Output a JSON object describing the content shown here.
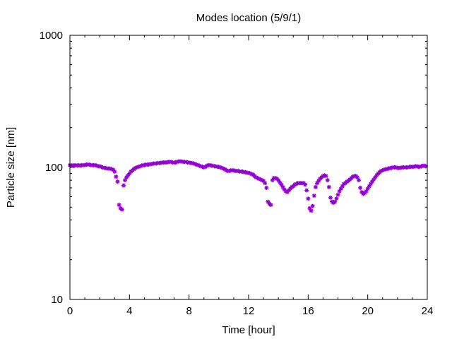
{
  "chart_data": {
    "type": "scatter",
    "title": "Modes location (5/9/1)",
    "xlabel": "Time [hour]",
    "ylabel": "Particle size [nm]",
    "xlim": [
      0,
      24
    ],
    "ylim": [
      10,
      1000
    ],
    "yscale": "log",
    "x_ticks": [
      0,
      4,
      8,
      12,
      16,
      20,
      24
    ],
    "x_tick_labels": [
      "0",
      "4",
      "8",
      "12",
      "16",
      "20",
      "24"
    ],
    "y_ticks": [
      10,
      100,
      1000
    ],
    "y_tick_labels": [
      "10",
      "100",
      "1000"
    ],
    "grid": false,
    "marker_color": "#9400d3",
    "series": [
      {
        "points": [
          [
            0.0,
            104
          ],
          [
            0.1,
            103
          ],
          [
            0.2,
            104
          ],
          [
            0.3,
            103
          ],
          [
            0.4,
            104
          ],
          [
            0.5,
            103
          ],
          [
            0.6,
            104
          ],
          [
            0.7,
            103
          ],
          [
            0.8,
            104
          ],
          [
            0.9,
            104
          ],
          [
            1.0,
            104
          ],
          [
            1.1,
            105
          ],
          [
            1.2,
            105
          ],
          [
            1.3,
            105
          ],
          [
            1.4,
            104
          ],
          [
            1.5,
            104
          ],
          [
            1.6,
            104
          ],
          [
            1.7,
            104
          ],
          [
            1.8,
            103
          ],
          [
            1.9,
            102
          ],
          [
            2.0,
            102
          ],
          [
            2.1,
            101
          ],
          [
            2.2,
            100
          ],
          [
            2.3,
            99
          ],
          [
            2.4,
            99
          ],
          [
            2.5,
            98
          ],
          [
            2.6,
            98
          ],
          [
            2.7,
            98
          ],
          [
            2.8,
            97
          ],
          [
            2.9,
            96
          ],
          [
            3.0,
            93
          ],
          [
            3.1,
            85
          ],
          [
            3.2,
            78
          ],
          [
            3.3,
            52
          ],
          [
            3.4,
            49
          ],
          [
            3.5,
            48
          ],
          [
            3.6,
            73
          ],
          [
            3.7,
            80
          ],
          [
            3.8,
            84
          ],
          [
            3.9,
            87
          ],
          [
            4.0,
            90
          ],
          [
            4.1,
            93
          ],
          [
            4.2,
            95
          ],
          [
            4.3,
            97
          ],
          [
            4.4,
            99
          ],
          [
            4.5,
            100
          ],
          [
            4.6,
            101
          ],
          [
            4.7,
            102
          ],
          [
            4.8,
            103
          ],
          [
            4.9,
            104
          ],
          [
            5.0,
            104
          ],
          [
            5.1,
            105
          ],
          [
            5.2,
            105
          ],
          [
            5.3,
            105
          ],
          [
            5.4,
            106
          ],
          [
            5.5,
            106
          ],
          [
            5.6,
            107
          ],
          [
            5.7,
            107
          ],
          [
            5.8,
            107
          ],
          [
            5.9,
            108
          ],
          [
            6.0,
            108
          ],
          [
            6.1,
            108
          ],
          [
            6.2,
            109
          ],
          [
            6.3,
            109
          ],
          [
            6.4,
            109
          ],
          [
            6.5,
            109
          ],
          [
            6.6,
            110
          ],
          [
            6.7,
            110
          ],
          [
            6.8,
            110
          ],
          [
            6.9,
            109
          ],
          [
            7.0,
            109
          ],
          [
            7.1,
            109
          ],
          [
            7.2,
            110
          ],
          [
            7.3,
            111
          ],
          [
            7.4,
            111
          ],
          [
            7.5,
            111
          ],
          [
            7.6,
            110
          ],
          [
            7.7,
            110
          ],
          [
            7.8,
            110
          ],
          [
            7.9,
            109
          ],
          [
            8.0,
            109
          ],
          [
            8.1,
            108
          ],
          [
            8.2,
            108
          ],
          [
            8.3,
            107
          ],
          [
            8.4,
            106
          ],
          [
            8.5,
            105
          ],
          [
            8.6,
            104
          ],
          [
            8.7,
            103
          ],
          [
            8.8,
            102
          ],
          [
            8.9,
            101
          ],
          [
            9.0,
            100
          ],
          [
            9.1,
            101
          ],
          [
            9.2,
            103
          ],
          [
            9.3,
            104
          ],
          [
            9.4,
            104
          ],
          [
            9.5,
            103
          ],
          [
            9.6,
            103
          ],
          [
            9.7,
            102
          ],
          [
            9.8,
            102
          ],
          [
            9.9,
            101
          ],
          [
            10.0,
            101
          ],
          [
            10.1,
            100
          ],
          [
            10.2,
            99
          ],
          [
            10.3,
            98
          ],
          [
            10.4,
            97
          ],
          [
            10.5,
            95
          ],
          [
            10.6,
            94
          ],
          [
            10.7,
            94
          ],
          [
            10.8,
            95
          ],
          [
            10.9,
            95
          ],
          [
            11.0,
            95
          ],
          [
            11.1,
            94
          ],
          [
            11.2,
            94
          ],
          [
            11.3,
            94
          ],
          [
            11.4,
            93
          ],
          [
            11.5,
            93
          ],
          [
            11.6,
            93
          ],
          [
            11.7,
            92
          ],
          [
            11.8,
            92
          ],
          [
            11.9,
            91
          ],
          [
            12.0,
            91
          ],
          [
            12.1,
            90
          ],
          [
            12.2,
            89
          ],
          [
            12.3,
            88
          ],
          [
            12.4,
            86
          ],
          [
            12.5,
            84
          ],
          [
            12.6,
            83
          ],
          [
            12.7,
            82
          ],
          [
            12.8,
            81
          ],
          [
            12.9,
            80
          ],
          [
            13.0,
            79
          ],
          [
            13.1,
            76
          ],
          [
            13.2,
            70
          ],
          [
            13.3,
            55
          ],
          [
            13.4,
            53
          ],
          [
            13.5,
            52
          ],
          [
            13.6,
            80
          ],
          [
            13.7,
            83
          ],
          [
            13.8,
            83
          ],
          [
            13.9,
            82
          ],
          [
            14.0,
            80
          ],
          [
            14.1,
            77
          ],
          [
            14.2,
            74
          ],
          [
            14.3,
            71
          ],
          [
            14.4,
            68
          ],
          [
            14.5,
            66
          ],
          [
            14.6,
            65
          ],
          [
            14.7,
            67
          ],
          [
            14.8,
            69
          ],
          [
            14.9,
            71
          ],
          [
            15.0,
            72
          ],
          [
            15.1,
            74
          ],
          [
            15.2,
            75
          ],
          [
            15.3,
            76
          ],
          [
            15.4,
            76
          ],
          [
            15.5,
            76
          ],
          [
            15.6,
            76
          ],
          [
            15.7,
            76
          ],
          [
            15.8,
            74
          ],
          [
            15.9,
            67
          ],
          [
            16.0,
            58
          ],
          [
            16.1,
            49
          ],
          [
            16.2,
            47
          ],
          [
            16.3,
            51
          ],
          [
            16.4,
            61
          ],
          [
            16.5,
            71
          ],
          [
            16.6,
            76
          ],
          [
            16.7,
            79
          ],
          [
            16.8,
            82
          ],
          [
            16.9,
            84
          ],
          [
            17.0,
            86
          ],
          [
            17.1,
            87
          ],
          [
            17.2,
            86
          ],
          [
            17.3,
            80
          ],
          [
            17.4,
            71
          ],
          [
            17.5,
            59
          ],
          [
            17.6,
            55
          ],
          [
            17.7,
            54
          ],
          [
            17.8,
            55
          ],
          [
            17.9,
            58
          ],
          [
            18.0,
            62
          ],
          [
            18.1,
            66
          ],
          [
            18.2,
            69
          ],
          [
            18.3,
            72
          ],
          [
            18.4,
            75
          ],
          [
            18.5,
            76
          ],
          [
            18.6,
            78
          ],
          [
            18.7,
            79
          ],
          [
            18.8,
            81
          ],
          [
            18.9,
            83
          ],
          [
            19.0,
            85
          ],
          [
            19.1,
            86
          ],
          [
            19.2,
            86
          ],
          [
            19.3,
            84
          ],
          [
            19.4,
            80
          ],
          [
            19.5,
            70
          ],
          [
            19.6,
            65
          ],
          [
            19.7,
            63
          ],
          [
            19.8,
            64
          ],
          [
            19.9,
            66
          ],
          [
            20.0,
            69
          ],
          [
            20.1,
            72
          ],
          [
            20.2,
            75
          ],
          [
            20.3,
            78
          ],
          [
            20.4,
            81
          ],
          [
            20.5,
            84
          ],
          [
            20.6,
            87
          ],
          [
            20.7,
            90
          ],
          [
            20.8,
            92
          ],
          [
            20.9,
            94
          ],
          [
            21.0,
            95
          ],
          [
            21.1,
            96
          ],
          [
            21.2,
            97
          ],
          [
            21.3,
            97
          ],
          [
            21.4,
            98
          ],
          [
            21.5,
            99
          ],
          [
            21.6,
            99
          ],
          [
            21.7,
            100
          ],
          [
            21.8,
            100
          ],
          [
            21.9,
            100
          ],
          [
            22.0,
            99
          ],
          [
            22.1,
            99
          ],
          [
            22.2,
            99
          ],
          [
            22.3,
            100
          ],
          [
            22.4,
            100
          ],
          [
            22.5,
            100
          ],
          [
            22.6,
            100
          ],
          [
            22.7,
            100
          ],
          [
            22.8,
            101
          ],
          [
            22.9,
            101
          ],
          [
            23.0,
            101
          ],
          [
            23.1,
            101
          ],
          [
            23.2,
            102
          ],
          [
            23.3,
            102
          ],
          [
            23.4,
            101
          ],
          [
            23.5,
            101
          ],
          [
            23.6,
            102
          ],
          [
            23.7,
            103
          ],
          [
            23.8,
            103
          ],
          [
            23.9,
            102
          ]
        ]
      }
    ]
  }
}
